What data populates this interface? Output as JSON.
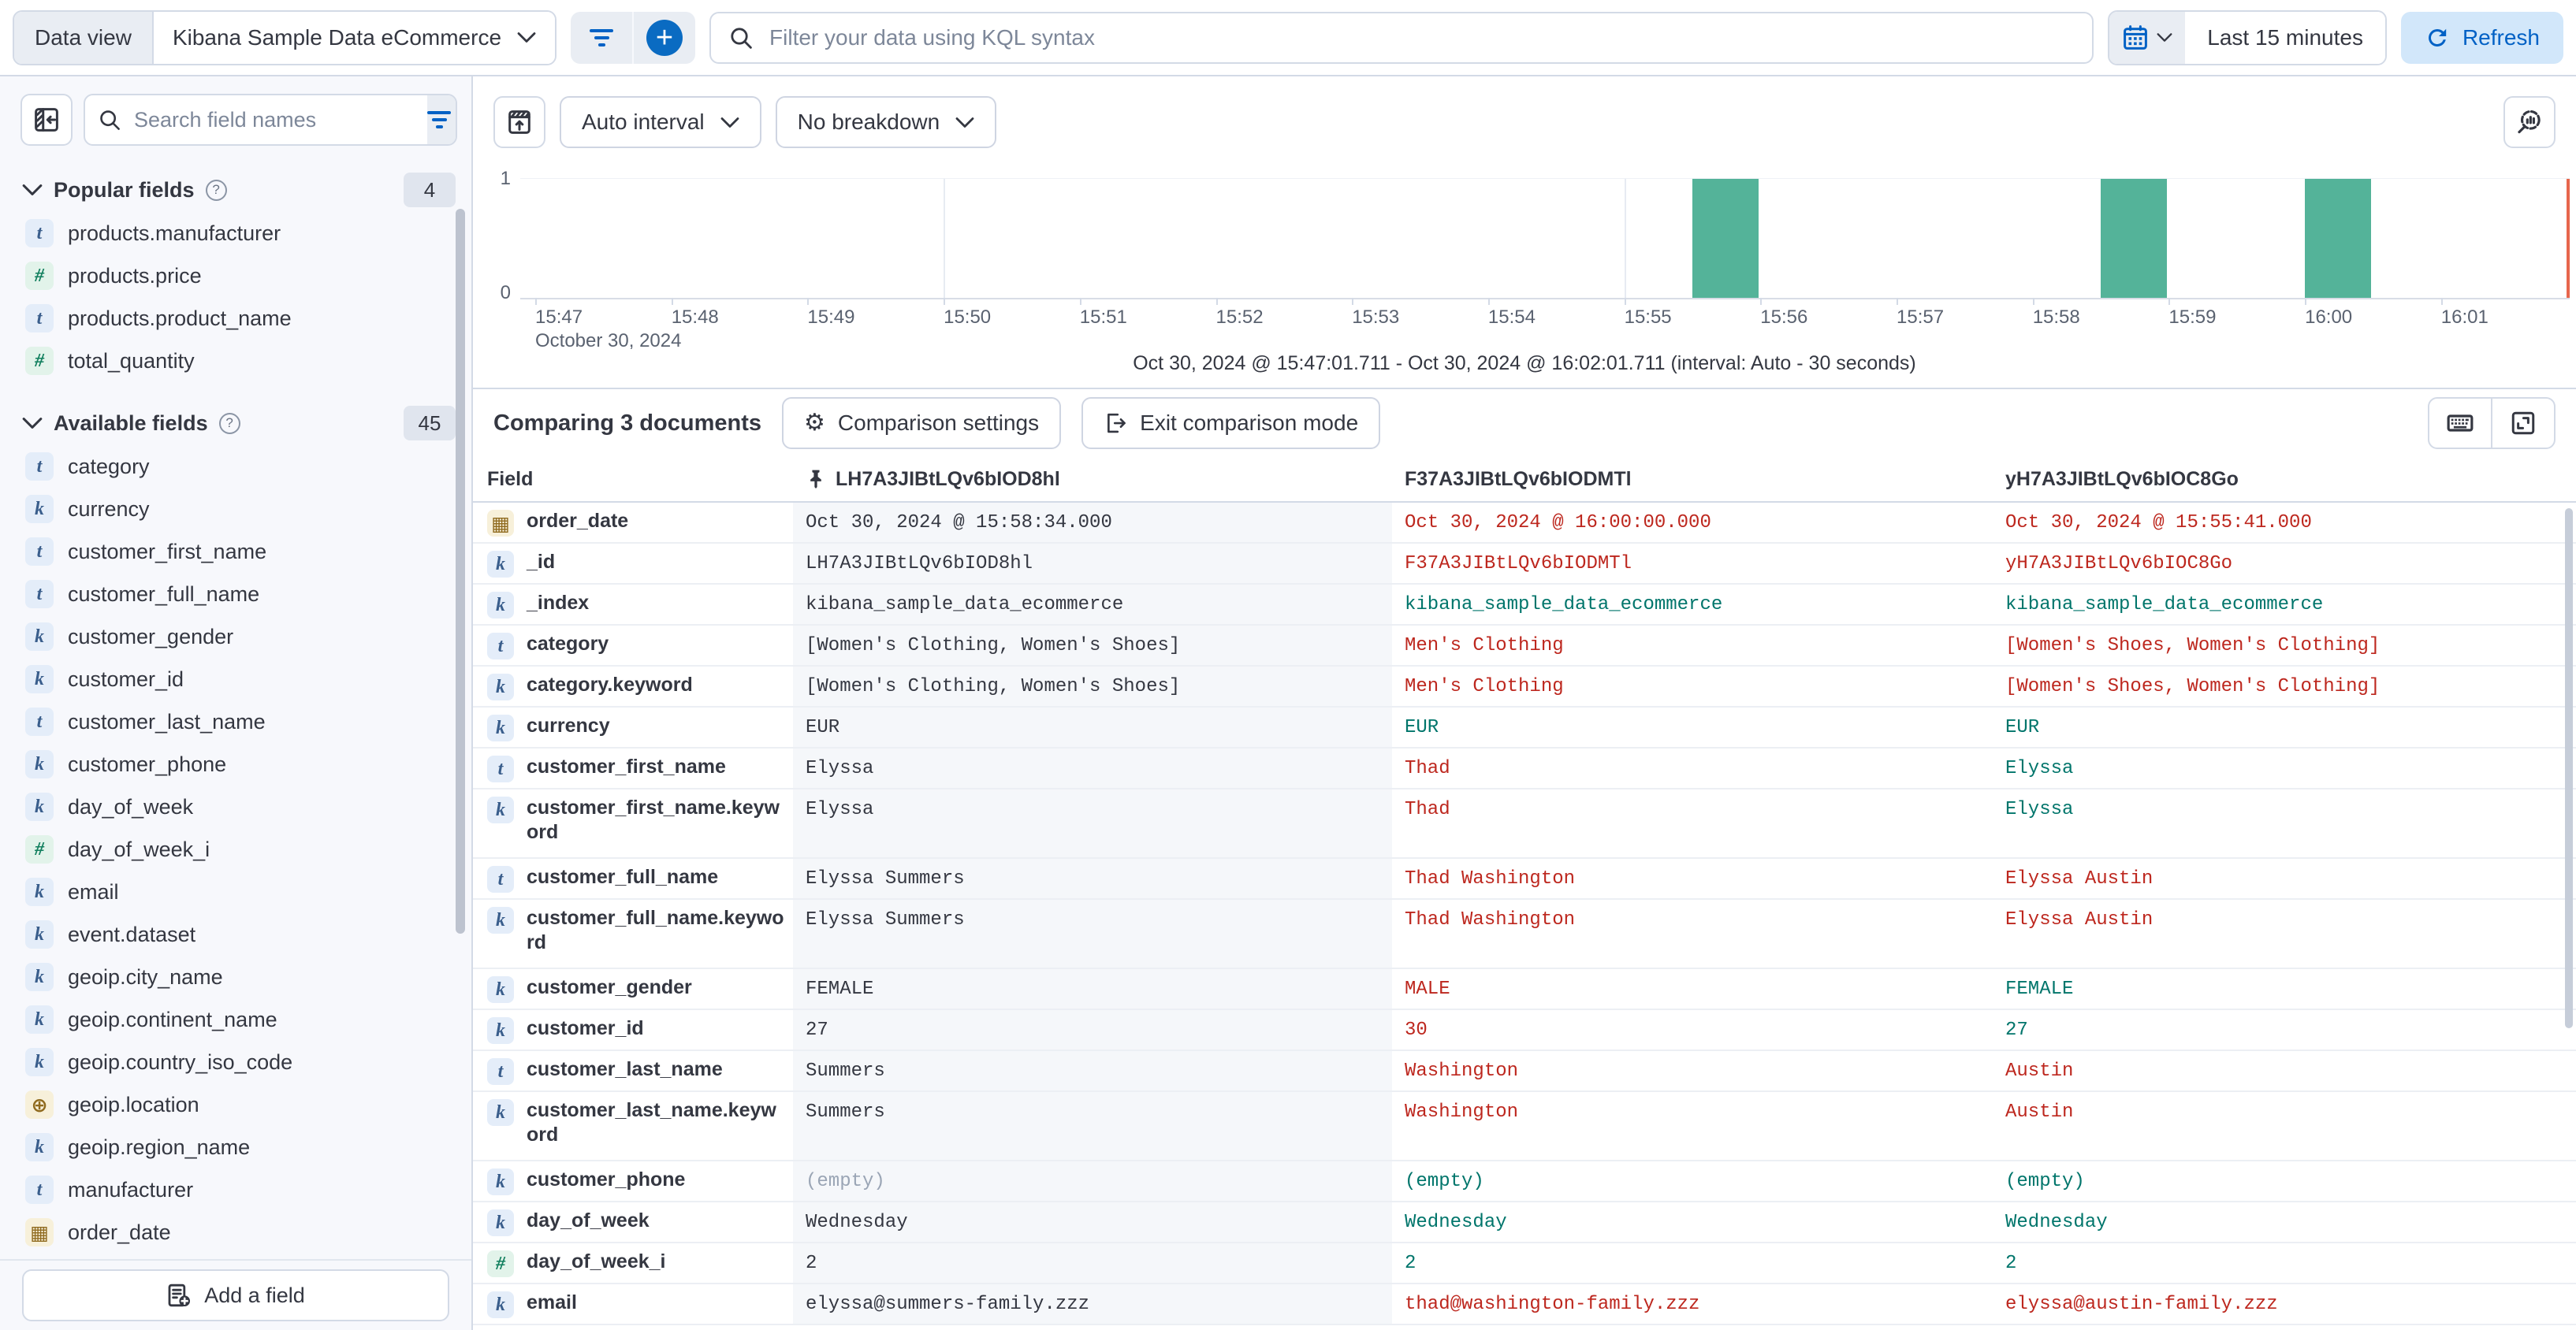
{
  "topbar": {
    "data_view_label": "Data view",
    "data_view_value": "Kibana Sample Data eCommerce",
    "add_filter_glyph": "+",
    "kql_placeholder": "Filter your data using KQL syntax",
    "time_range": "Last 15 minutes",
    "refresh_label": "Refresh"
  },
  "sidebar": {
    "search_placeholder": "Search field names",
    "filter_count": "0",
    "help_glyph": "?",
    "popular": {
      "title": "Popular fields",
      "count": "4",
      "items": [
        {
          "badge": "t",
          "glyph": "t",
          "name": "products.manufacturer"
        },
        {
          "badge": "num",
          "glyph": "#",
          "name": "products.price"
        },
        {
          "badge": "t",
          "glyph": "t",
          "name": "products.product_name"
        },
        {
          "badge": "num",
          "glyph": "#",
          "name": "total_quantity"
        }
      ]
    },
    "available": {
      "title": "Available fields",
      "count": "45",
      "items": [
        {
          "badge": "t",
          "glyph": "t",
          "name": "category"
        },
        {
          "badge": "k",
          "glyph": "k",
          "name": "currency"
        },
        {
          "badge": "t",
          "glyph": "t",
          "name": "customer_first_name"
        },
        {
          "badge": "t",
          "glyph": "t",
          "name": "customer_full_name"
        },
        {
          "badge": "k",
          "glyph": "k",
          "name": "customer_gender"
        },
        {
          "badge": "k",
          "glyph": "k",
          "name": "customer_id"
        },
        {
          "badge": "t",
          "glyph": "t",
          "name": "customer_last_name"
        },
        {
          "badge": "k",
          "glyph": "k",
          "name": "customer_phone"
        },
        {
          "badge": "k",
          "glyph": "k",
          "name": "day_of_week"
        },
        {
          "badge": "num",
          "glyph": "#",
          "name": "day_of_week_i"
        },
        {
          "badge": "k",
          "glyph": "k",
          "name": "email"
        },
        {
          "badge": "k",
          "glyph": "k",
          "name": "event.dataset"
        },
        {
          "badge": "k",
          "glyph": "k",
          "name": "geoip.city_name"
        },
        {
          "badge": "k",
          "glyph": "k",
          "name": "geoip.continent_name"
        },
        {
          "badge": "k",
          "glyph": "k",
          "name": "geoip.country_iso_code"
        },
        {
          "badge": "geo",
          "glyph": "⊕",
          "name": "geoip.location"
        },
        {
          "badge": "k",
          "glyph": "k",
          "name": "geoip.region_name"
        },
        {
          "badge": "t",
          "glyph": "t",
          "name": "manufacturer"
        },
        {
          "badge": "cal",
          "glyph": "▦",
          "name": "order_date"
        }
      ]
    },
    "add_field_label": "Add a field"
  },
  "chart": {
    "interval_label": "Auto interval",
    "breakdown_label": "No breakdown",
    "y_ticks": [
      "1",
      "0"
    ],
    "x_ticks": [
      "15:47",
      "15:48",
      "15:49",
      "15:50",
      "15:51",
      "15:52",
      "15:53",
      "15:54",
      "15:55",
      "15:56",
      "15:57",
      "15:58",
      "15:59",
      "16:00",
      "16:01"
    ],
    "x_date_label": "October 30, 2024",
    "caption": "Oct 30, 2024 @ 15:47:01.711 - Oct 30, 2024 @ 16:02:01.711 (interval: Auto - 30 seconds)",
    "type": "histogram",
    "bars": [
      {
        "start": "15:55:30",
        "count": 1
      },
      {
        "start": "15:58:30",
        "count": 1
      },
      {
        "start": "16:00:00",
        "count": 1
      }
    ],
    "gridline_times": [
      "15:50",
      "15:55",
      "16:00"
    ],
    "bar_color": "#54b399",
    "now_line_color": "#e7664c"
  },
  "comparison": {
    "title": "Comparing 3 documents",
    "settings_icon_glyph": "⚙",
    "settings_label": "Comparison settings",
    "exit_label": "Exit comparison mode"
  },
  "table": {
    "field_header": "Field",
    "docs": [
      {
        "id": "LH7A3JIBtLQv6bIOD8hl",
        "pinned": true
      },
      {
        "id": "F37A3JIBtLQv6bIODMTl"
      },
      {
        "id": "yH7A3JIBtLQv6bIOC8Go"
      }
    ],
    "diff_color": "#bd271e",
    "match_color": "#00756b",
    "rows": [
      {
        "badge": "cal",
        "glyph": "▦",
        "field": "order_date",
        "h": "std",
        "base": {
          "text": "Oct 30, 2024 @ 15:58:34.000",
          "status": "base"
        },
        "c1": {
          "text": "Oct 30, 2024 @ 16:00:00.000",
          "status": "diff"
        },
        "c2": {
          "text": "Oct 30, 2024 @ 15:55:41.000",
          "status": "diff"
        }
      },
      {
        "badge": "k",
        "glyph": "k",
        "field": "_id",
        "h": "std",
        "base": {
          "text": "LH7A3JIBtLQv6bIOD8hl",
          "status": "base"
        },
        "c1": {
          "text": "F37A3JIBtLQv6bIODMTl",
          "status": "diff"
        },
        "c2": {
          "text": "yH7A3JIBtLQv6bIOC8Go",
          "status": "diff"
        }
      },
      {
        "badge": "k",
        "glyph": "k",
        "field": "_index",
        "h": "std",
        "base": {
          "text": "kibana_sample_data_ecommerce",
          "status": "base"
        },
        "c1": {
          "text": "kibana_sample_data_ecommerce",
          "status": "same"
        },
        "c2": {
          "text": "kibana_sample_data_ecommerce",
          "status": "same"
        }
      },
      {
        "badge": "t",
        "glyph": "t",
        "field": "category",
        "h": "std",
        "base": {
          "text": "[Women's Clothing, Women's Shoes]",
          "status": "base"
        },
        "c1": {
          "text": "Men's Clothing",
          "status": "diff"
        },
        "c2": {
          "text": "[Women's Shoes, Women's Clothing]",
          "status": "diff"
        }
      },
      {
        "badge": "k",
        "glyph": "k",
        "field": "category.keyword",
        "h": "std",
        "base": {
          "text": "[Women's Clothing, Women's Shoes]",
          "status": "base"
        },
        "c1": {
          "text": "Men's Clothing",
          "status": "diff"
        },
        "c2": {
          "text": "[Women's Shoes, Women's Clothing]",
          "status": "diff"
        }
      },
      {
        "badge": "k",
        "glyph": "k",
        "field": "currency",
        "h": "std",
        "base": {
          "text": "EUR",
          "status": "base"
        },
        "c1": {
          "text": "EUR",
          "status": "same"
        },
        "c2": {
          "text": "EUR",
          "status": "same"
        }
      },
      {
        "badge": "t",
        "glyph": "t",
        "field": "customer_first_name",
        "h": "std",
        "base": {
          "text": "Elyssa",
          "status": "base"
        },
        "c1": {
          "text": "Thad",
          "status": "diff"
        },
        "c2": {
          "text": "Elyssa",
          "status": "same"
        }
      },
      {
        "badge": "k",
        "glyph": "k",
        "field": "customer_first_name.keyword",
        "h": "tall",
        "base": {
          "text": "Elyssa",
          "status": "base"
        },
        "c1": {
          "text": "Thad",
          "status": "diff"
        },
        "c2": {
          "text": "Elyssa",
          "status": "same"
        }
      },
      {
        "badge": "t",
        "glyph": "t",
        "field": "customer_full_name",
        "h": "std",
        "base": {
          "text": "Elyssa Summers",
          "status": "base"
        },
        "c1": {
          "text": "Thad Washington",
          "status": "diff"
        },
        "c2": {
          "text": "Elyssa Austin",
          "status": "diff"
        }
      },
      {
        "badge": "k",
        "glyph": "k",
        "field": "customer_full_name.keyword",
        "h": "tall",
        "base": {
          "text": "Elyssa Summers",
          "status": "base"
        },
        "c1": {
          "text": "Thad Washington",
          "status": "diff"
        },
        "c2": {
          "text": "Elyssa Austin",
          "status": "diff"
        }
      },
      {
        "badge": "k",
        "glyph": "k",
        "field": "customer_gender",
        "h": "std",
        "base": {
          "text": "FEMALE",
          "status": "base"
        },
        "c1": {
          "text": "MALE",
          "status": "diff"
        },
        "c2": {
          "text": "FEMALE",
          "status": "same"
        }
      },
      {
        "badge": "k",
        "glyph": "k",
        "field": "customer_id",
        "h": "std",
        "base": {
          "text": "27",
          "status": "base"
        },
        "c1": {
          "text": "30",
          "status": "diff"
        },
        "c2": {
          "text": "27",
          "status": "same"
        }
      },
      {
        "badge": "t",
        "glyph": "t",
        "field": "customer_last_name",
        "h": "std",
        "base": {
          "text": "Summers",
          "status": "base"
        },
        "c1": {
          "text": "Washington",
          "status": "diff"
        },
        "c2": {
          "text": "Austin",
          "status": "diff"
        }
      },
      {
        "badge": "k",
        "glyph": "k",
        "field": "customer_last_name.keyword",
        "h": "tall",
        "base": {
          "text": "Summers",
          "status": "base"
        },
        "c1": {
          "text": "Washington",
          "status": "diff"
        },
        "c2": {
          "text": "Austin",
          "status": "diff"
        }
      },
      {
        "badge": "k",
        "glyph": "k",
        "field": "customer_phone",
        "h": "std",
        "base": {
          "text": "(empty)",
          "status": "empty"
        },
        "c1": {
          "text": "(empty)",
          "status": "same"
        },
        "c2": {
          "text": "(empty)",
          "status": "same"
        }
      },
      {
        "badge": "k",
        "glyph": "k",
        "field": "day_of_week",
        "h": "std",
        "base": {
          "text": "Wednesday",
          "status": "base"
        },
        "c1": {
          "text": "Wednesday",
          "status": "same"
        },
        "c2": {
          "text": "Wednesday",
          "status": "same"
        }
      },
      {
        "badge": "num",
        "glyph": "#",
        "field": "day_of_week_i",
        "h": "std",
        "base": {
          "text": "2",
          "status": "base"
        },
        "c1": {
          "text": "2",
          "status": "same"
        },
        "c2": {
          "text": "2",
          "status": "same"
        }
      },
      {
        "badge": "k",
        "glyph": "k",
        "field": "email",
        "h": "std",
        "base": {
          "text": "elyssa@summers-family.zzz",
          "status": "base"
        },
        "c1": {
          "text": "thad@washington-family.zzz",
          "status": "diff"
        },
        "c2": {
          "text": "elyssa@austin-family.zzz",
          "status": "diff"
        }
      }
    ]
  }
}
